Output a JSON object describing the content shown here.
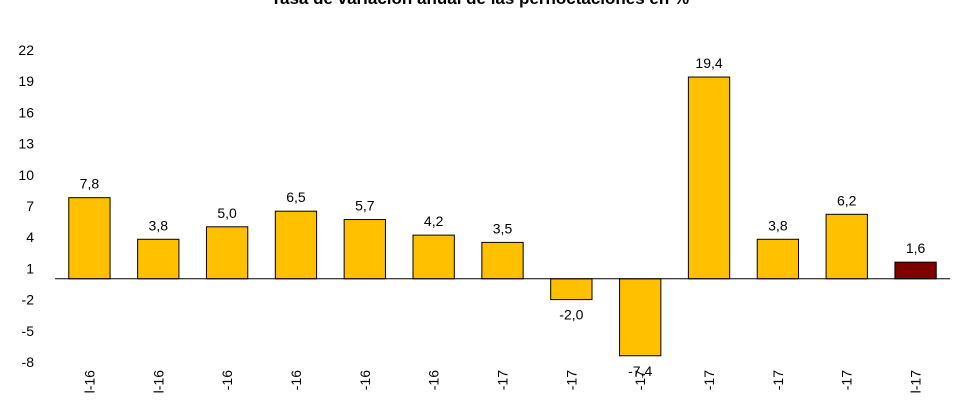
{
  "chart_data": {
    "type": "bar",
    "title": "Tasa de variación anual de las pernoctaciones en %",
    "categories": [
      "…-16",
      "…-16",
      "…-16",
      "…-16",
      "…-16",
      "…-16",
      "…-17",
      "…-17",
      "…-17",
      "…-17",
      "…-17",
      "…-17",
      "…-17"
    ],
    "categories_visible": [
      "l-16",
      "l-16",
      "-16",
      "-16",
      "-16",
      "-16",
      "-17",
      "-17",
      "-17",
      "-17",
      "-17",
      "-17",
      "l-17"
    ],
    "values": [
      7.8,
      3.8,
      5.0,
      6.5,
      5.7,
      4.2,
      3.5,
      -2.0,
      -7.4,
      19.4,
      3.8,
      6.2,
      1.6
    ],
    "value_labels": [
      "7,8",
      "3,8",
      "5,0",
      "6,5",
      "5,7",
      "4,2",
      "3,5",
      "-2,0",
      "-7,4",
      "19,4",
      "3,8",
      "6,2",
      "1,6"
    ],
    "highlight_index": 12,
    "yticks": [
      22,
      19,
      16,
      13,
      10,
      7,
      4,
      1,
      -2,
      -5,
      -8
    ],
    "ylim": [
      -8,
      22
    ],
    "grid": false,
    "legend": "none",
    "colors": {
      "bar": "#FFC000",
      "bar_highlight": "#800000",
      "bar_stroke": "#000000",
      "axis": "#000000"
    }
  }
}
